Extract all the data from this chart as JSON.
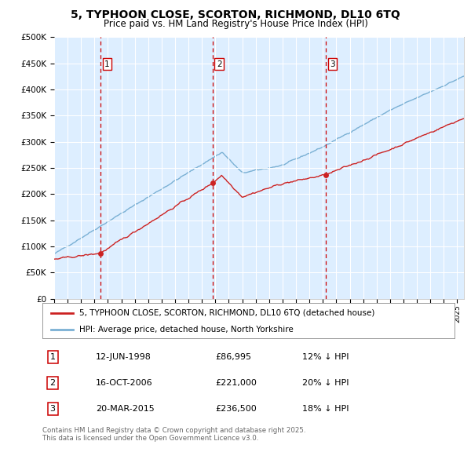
{
  "title_line1": "5, TYPHOON CLOSE, SCORTON, RICHMOND, DL10 6TQ",
  "title_line2": "Price paid vs. HM Land Registry's House Price Index (HPI)",
  "ylim": [
    0,
    500000
  ],
  "yticks": [
    0,
    50000,
    100000,
    150000,
    200000,
    250000,
    300000,
    350000,
    400000,
    450000,
    500000
  ],
  "ytick_labels": [
    "£0",
    "£50K",
    "£100K",
    "£150K",
    "£200K",
    "£250K",
    "£300K",
    "£350K",
    "£400K",
    "£450K",
    "£500K"
  ],
  "xlim_start": 1995.0,
  "xlim_end": 2025.5,
  "plot_bg_color": "#ddeeff",
  "hpi_line_color": "#7ab0d4",
  "price_line_color": "#cc2222",
  "grid_color": "#ffffff",
  "sale_markers": [
    {
      "date_num": 1998.45,
      "price": 86995,
      "label": "1"
    },
    {
      "date_num": 2006.79,
      "price": 221000,
      "label": "2"
    },
    {
      "date_num": 2015.22,
      "price": 236500,
      "label": "3"
    }
  ],
  "vline_color": "#cc0000",
  "legend_entries": [
    "5, TYPHOON CLOSE, SCORTON, RICHMOND, DL10 6TQ (detached house)",
    "HPI: Average price, detached house, North Yorkshire"
  ],
  "table_rows": [
    {
      "num": "1",
      "date": "12-JUN-1998",
      "price": "£86,995",
      "hpi": "12% ↓ HPI"
    },
    {
      "num": "2",
      "date": "16-OCT-2006",
      "price": "£221,000",
      "hpi": "20% ↓ HPI"
    },
    {
      "num": "3",
      "date": "20-MAR-2015",
      "price": "£236,500",
      "hpi": "18% ↓ HPI"
    }
  ],
  "footnote": "Contains HM Land Registry data © Crown copyright and database right 2025.\nThis data is licensed under the Open Government Licence v3.0."
}
